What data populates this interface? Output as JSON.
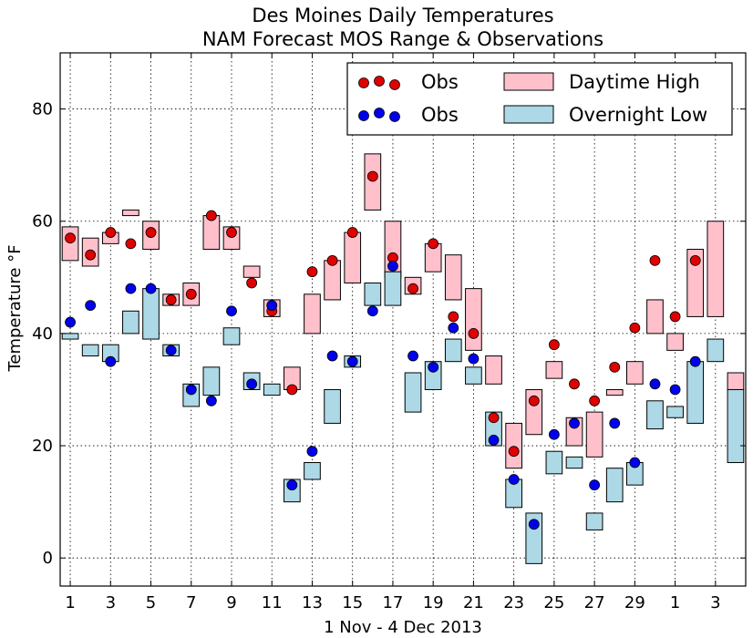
{
  "chart_data": {
    "type": "bar",
    "title": "Des Moines Daily Temperatures",
    "subtitle": "NAM Forecast MOS Range & Observations",
    "xlabel": "1 Nov - 4 Dec 2013",
    "ylabel": "Temperature °F",
    "ylim": [
      -5,
      90
    ],
    "yticks": [
      0,
      20,
      40,
      60,
      80
    ],
    "xticks": [
      {
        "day": 1,
        "label": "1"
      },
      {
        "day": 3,
        "label": "3"
      },
      {
        "day": 5,
        "label": "5"
      },
      {
        "day": 7,
        "label": "7"
      },
      {
        "day": 9,
        "label": "9"
      },
      {
        "day": 11,
        "label": "11"
      },
      {
        "day": 13,
        "label": "13"
      },
      {
        "day": 15,
        "label": "15"
      },
      {
        "day": 17,
        "label": "17"
      },
      {
        "day": 19,
        "label": "19"
      },
      {
        "day": 21,
        "label": "21"
      },
      {
        "day": 23,
        "label": "23"
      },
      {
        "day": 25,
        "label": "25"
      },
      {
        "day": 27,
        "label": "27"
      },
      {
        "day": 29,
        "label": "29"
      },
      {
        "day": 31,
        "label": "1"
      },
      {
        "day": 33,
        "label": "3"
      }
    ],
    "grid": true,
    "legend_position": "top-right",
    "legend": [
      {
        "label": "Obs",
        "kind": "marker",
        "color": "#e00000"
      },
      {
        "label": "Daytime High",
        "kind": "box",
        "color": "#ffc0cb"
      },
      {
        "label": "Obs",
        "kind": "marker",
        "color": "#0000ee"
      },
      {
        "label": "Overnight Low",
        "kind": "box",
        "color": "#add8e6"
      }
    ],
    "colors": {
      "high_fill": "#ffc0cb",
      "low_fill": "#add8e6",
      "high_obs": "#e00000",
      "low_obs": "#0000ee"
    },
    "series": [
      {
        "name": "Daytime High",
        "days": [
          1,
          2,
          3,
          4,
          5,
          6,
          7,
          8,
          9,
          10,
          11,
          12,
          13,
          14,
          15,
          16,
          17,
          18,
          19,
          20,
          21,
          22,
          23,
          24,
          25,
          26,
          27,
          28,
          29,
          30,
          31,
          32,
          33,
          34
        ],
        "min": [
          53,
          52,
          56,
          61,
          55,
          45,
          45,
          55,
          55,
          50,
          43,
          30,
          40,
          46,
          49,
          62,
          50,
          47,
          51,
          46,
          37,
          31,
          16,
          22,
          32,
          20,
          18,
          29,
          31,
          40,
          37,
          43,
          43,
          30
        ],
        "max": [
          59,
          57,
          58,
          62,
          60,
          47,
          49,
          61,
          59,
          52,
          46,
          34,
          47,
          53,
          58,
          72,
          60,
          50,
          56,
          54,
          48,
          36,
          24,
          30,
          35,
          25,
          26,
          30,
          35,
          46,
          40,
          55,
          60,
          33
        ]
      },
      {
        "name": "Daytime High Obs",
        "days": [
          1,
          2,
          3,
          4,
          5,
          6,
          7,
          8,
          9,
          10,
          11,
          12,
          13,
          14,
          15,
          16,
          17,
          18,
          19,
          20,
          21,
          22,
          23,
          24,
          25,
          26,
          27,
          28,
          29,
          30,
          31,
          32
        ],
        "values": [
          57,
          54,
          58,
          56,
          58,
          46,
          47,
          61,
          58,
          49,
          44,
          30,
          51,
          53,
          58,
          68,
          53.5,
          48,
          56,
          43,
          40,
          25,
          19,
          28,
          38,
          31,
          28,
          34,
          41,
          53,
          43,
          53
        ]
      },
      {
        "name": "Overnight Low",
        "days": [
          1,
          2,
          3,
          4,
          5,
          6,
          7,
          8,
          9,
          10,
          11,
          12,
          13,
          14,
          15,
          16,
          17,
          18,
          19,
          20,
          21,
          22,
          23,
          24,
          25,
          26,
          27,
          28,
          29,
          30,
          31,
          32,
          33,
          34
        ],
        "min": [
          39,
          36,
          35,
          40,
          39,
          36,
          27,
          29,
          38,
          30,
          29,
          10,
          14,
          24,
          34,
          45,
          45,
          26,
          30,
          35,
          31,
          20,
          9,
          -1,
          15,
          16,
          5,
          10,
          13,
          23,
          25,
          24,
          35,
          17
        ],
        "max": [
          40,
          38,
          38,
          44,
          48,
          38,
          31,
          34,
          41,
          33,
          31,
          14,
          17,
          30,
          36,
          49,
          51,
          33,
          35,
          39,
          34,
          26,
          14,
          8,
          19,
          18,
          8,
          16,
          17,
          28,
          27,
          35,
          39,
          30
        ]
      },
      {
        "name": "Overnight Low Obs",
        "days": [
          1,
          2,
          3,
          4,
          5,
          6,
          7,
          8,
          9,
          10,
          11,
          12,
          13,
          14,
          15,
          16,
          17,
          18,
          19,
          20,
          21,
          22,
          23,
          24,
          25,
          26,
          27,
          28,
          29,
          30,
          31,
          32
        ],
        "values": [
          42,
          45,
          35,
          48,
          48,
          37,
          30,
          28,
          44,
          31,
          45,
          13,
          19,
          36,
          35,
          44,
          52,
          36,
          34,
          41,
          35.5,
          21,
          14,
          6,
          22,
          24,
          13,
          24,
          17,
          31,
          30,
          35
        ]
      }
    ]
  }
}
